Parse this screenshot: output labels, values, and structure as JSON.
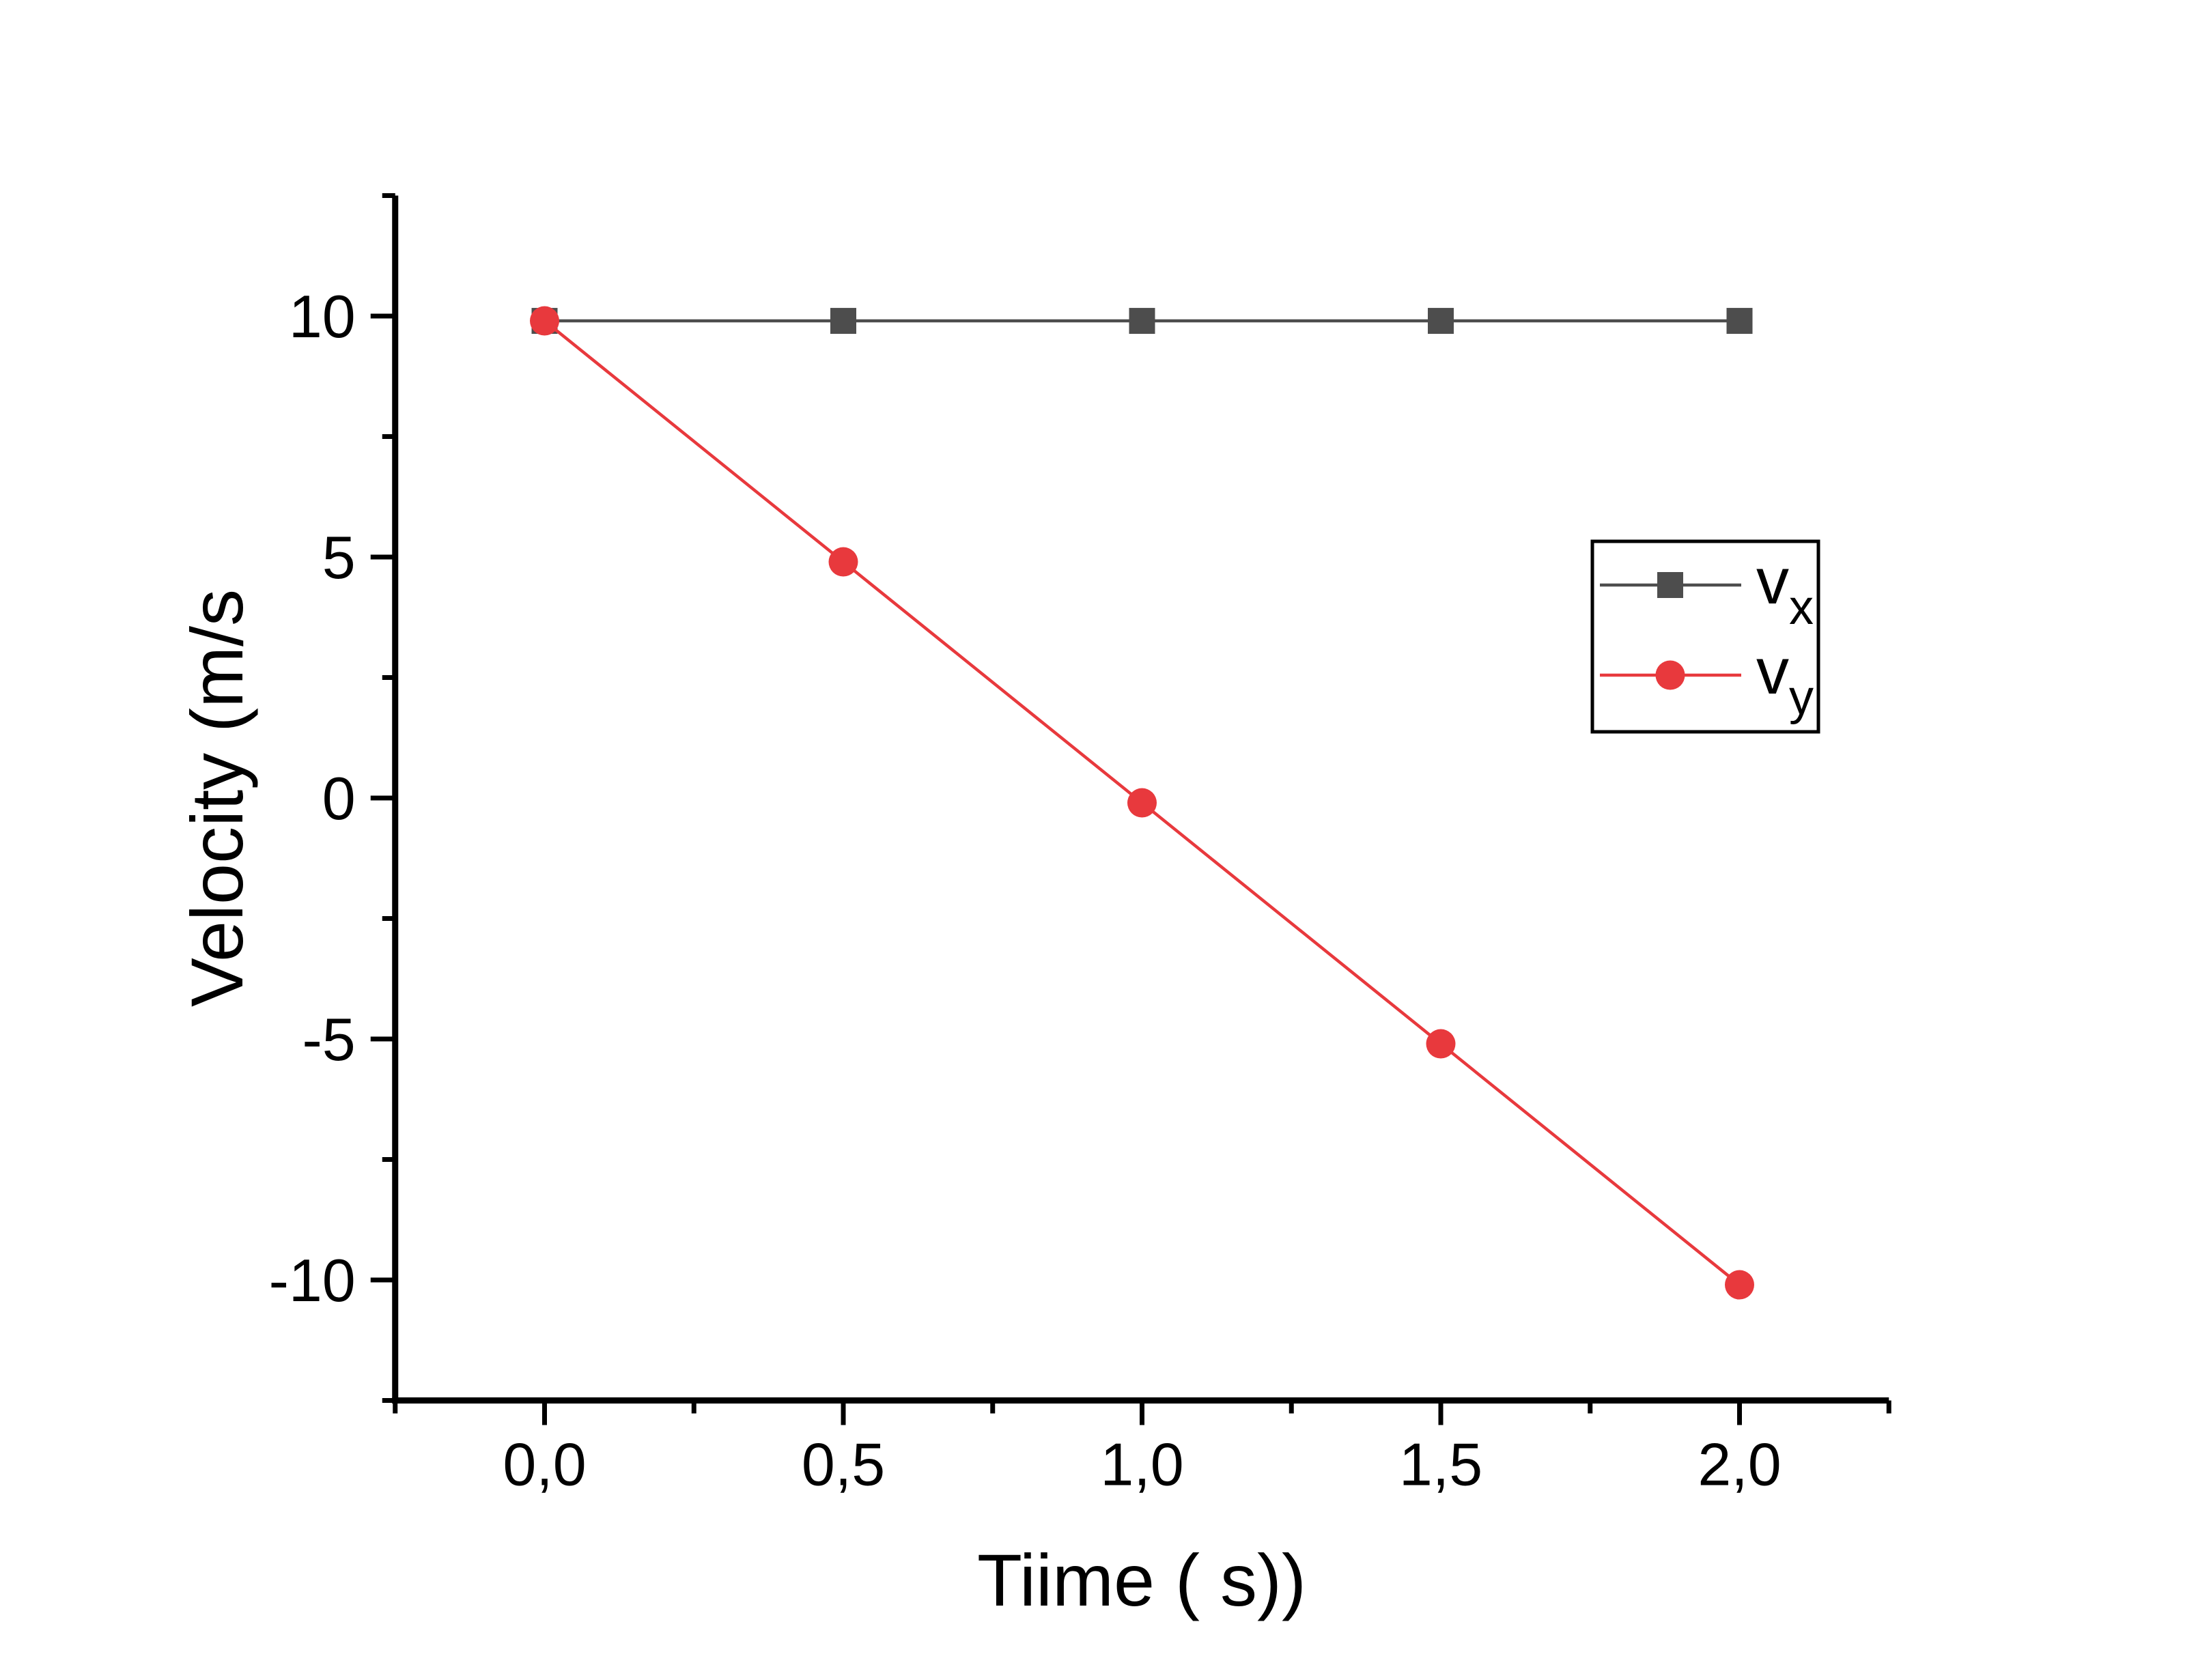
{
  "figure": {
    "background": "#ffffff",
    "frame": "open-left-bottom"
  },
  "chart_data": {
    "type": "line",
    "title": "",
    "xlabel": "Tiime ( s))",
    "ylabel": "Velocity (m/s",
    "x": [
      0,
      0.5,
      1.0,
      1.5,
      2.0
    ],
    "series": [
      {
        "name": "vx",
        "label_base": "v",
        "label_sub": "x",
        "values": [
          9.9,
          9.9,
          9.9,
          9.9,
          9.9
        ],
        "color": "#4d4d4d",
        "marker": "square"
      },
      {
        "name": "vy",
        "label_base": "v",
        "label_sub": "y",
        "values": [
          9.9,
          4.9,
          -0.1,
          -5.1,
          -10.1
        ],
        "color": "#e8393d",
        "marker": "circle"
      }
    ],
    "xlim": [
      -0.25,
      2.25
    ],
    "ylim": [
      -12.5,
      12.5
    ],
    "x_ticks": {
      "major": [
        0,
        0.5,
        1.0,
        1.5,
        2.0
      ],
      "labels": [
        "0,0",
        "0,5",
        "1,0",
        "1,5",
        "2,0"
      ],
      "minor": [
        -0.25,
        0.25,
        0.75,
        1.25,
        1.75,
        2.25
      ]
    },
    "y_ticks": {
      "major": [
        10,
        5,
        0,
        -5,
        -10
      ],
      "labels": [
        "10",
        "5",
        "0",
        "-5",
        "-10"
      ],
      "minor": [
        12.5,
        7.5,
        2.5,
        -2.5,
        -7.5,
        -12.5
      ]
    },
    "grid": "off",
    "legend": {
      "position": "upper-right",
      "border": true,
      "entries": [
        "vx",
        "vy"
      ]
    },
    "colors": {
      "axis": "#000000",
      "vx": "#4d4d4d",
      "vy": "#e8393d"
    }
  }
}
